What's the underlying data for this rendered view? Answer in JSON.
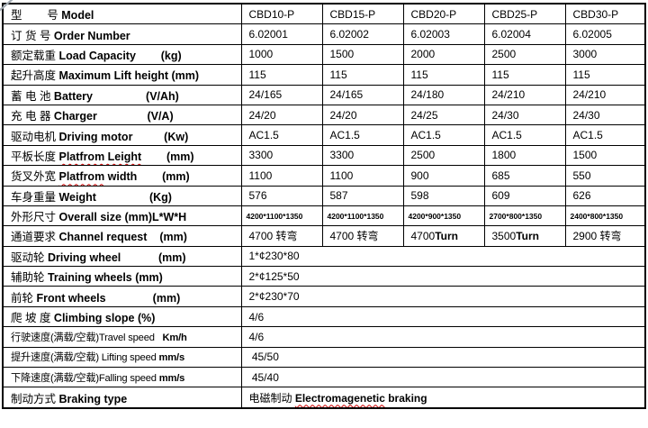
{
  "colors": {
    "border": "#000000",
    "spellcheck_underline": "#cc0000",
    "background": "#ffffff",
    "corner_artifact": "#a3abb3"
  },
  "table": {
    "columns": 6,
    "rows": [
      {
        "label": [
          {
            "t": "型        号 "
          },
          {
            "t": "Model",
            "b": true
          }
        ],
        "values": [
          "CBD10-P",
          "CBD15-P",
          "CBD20-P",
          "CBD25-P",
          "CBD30-P"
        ]
      },
      {
        "label": [
          {
            "t": "订 货 号 "
          },
          {
            "t": "Order Number",
            "b": true
          }
        ],
        "values": [
          "6.02001",
          "6.02002",
          "6.02003",
          "6.02004",
          "6.02005"
        ]
      },
      {
        "label": [
          {
            "t": "额定载重 "
          },
          {
            "t": "Load Capacity",
            "b": true
          },
          {
            "t": "        "
          },
          {
            "t": "(kg)",
            "b": true
          }
        ],
        "values": [
          "1000",
          "1500",
          "2000",
          "2500",
          "3000"
        ]
      },
      {
        "label": [
          {
            "t": "起升高度 "
          },
          {
            "t": "Maximum Lift height (mm)",
            "b": true
          }
        ],
        "values": [
          "115",
          "115",
          "115",
          "115",
          "115"
        ]
      },
      {
        "label": [
          {
            "t": "蓄 电 池 "
          },
          {
            "t": "Battery",
            "b": true
          },
          {
            "t": "                 "
          },
          {
            "t": "(V/Ah)",
            "b": true
          }
        ],
        "values": [
          "24/165",
          "24/165",
          "24/180",
          "24/210",
          "24/210"
        ]
      },
      {
        "label": [
          {
            "t": "充 电 器 "
          },
          {
            "t": "Charger",
            "b": true
          },
          {
            "t": "                "
          },
          {
            "t": "(V/A)",
            "b": true
          }
        ],
        "values": [
          "24/20",
          "24/20",
          "24/25",
          "24/30",
          "24/30"
        ]
      },
      {
        "label": [
          {
            "t": "驱动电机 "
          },
          {
            "t": "Driving motor",
            "b": true
          },
          {
            "t": "          "
          },
          {
            "t": "(Kw)",
            "b": true
          }
        ],
        "values": [
          "AC1.5",
          "AC1.5",
          "AC1.5",
          "AC1.5",
          "AC1.5"
        ]
      },
      {
        "label": [
          {
            "t": "平板长度 "
          },
          {
            "t": "Platfrom Leight",
            "b": true,
            "w": true
          },
          {
            "t": "        "
          },
          {
            "t": "(mm)",
            "b": true
          }
        ],
        "values": [
          "3300",
          "3300",
          "2500",
          "1800",
          "1500"
        ]
      },
      {
        "label": [
          {
            "t": "货叉外宽 "
          },
          {
            "t": "Platfrom",
            "b": true,
            "w": true
          },
          {
            "t": " width",
            "b": true
          },
          {
            "t": "        "
          },
          {
            "t": "(mm)",
            "b": true
          }
        ],
        "values": [
          "1100",
          "1100",
          "900",
          "685",
          "550"
        ]
      },
      {
        "label": [
          {
            "t": "车身重量 "
          },
          {
            "t": "Weight",
            "b": true
          },
          {
            "t": "                 "
          },
          {
            "t": "(Kg)",
            "b": true
          }
        ],
        "values": [
          "576",
          "587",
          "598",
          "609",
          "626"
        ]
      },
      {
        "label": [
          {
            "t": "外形尺寸 "
          },
          {
            "t": "Overall size (mm)L*W*H",
            "b": true
          }
        ],
        "small": true,
        "values": [
          "4200*1100*1350",
          "4200*1100*1350",
          "4200*900*1350",
          "2700*800*1350",
          "2400*800*1350"
        ]
      },
      {
        "label": [
          {
            "t": "通道要求 "
          },
          {
            "t": "Channel request",
            "b": true
          },
          {
            "t": "    "
          },
          {
            "t": "(mm)",
            "b": true
          }
        ],
        "values": [
          "4700 转弯",
          "4700 转弯",
          [
            {
              "t": "4700"
            },
            {
              "t": "Turn",
              "b": true
            }
          ],
          [
            {
              "t": "3500"
            },
            {
              "t": "Turn",
              "b": true
            }
          ],
          "2900 转弯"
        ]
      },
      {
        "label": [
          {
            "t": "驱动轮 "
          },
          {
            "t": "Driving wheel",
            "b": true
          },
          {
            "t": "            "
          },
          {
            "t": "(mm)",
            "b": true
          }
        ],
        "merged": true,
        "values": [
          "1*¢230*80"
        ]
      },
      {
        "label": [
          {
            "t": "辅助轮 "
          },
          {
            "t": "Training wheels (mm)",
            "b": true
          }
        ],
        "merged": true,
        "values": [
          "2*¢125*50"
        ]
      },
      {
        "label": [
          {
            "t": "前轮 "
          },
          {
            "t": "Front wheels",
            "b": true
          },
          {
            "t": "               "
          },
          {
            "t": "(mm)",
            "b": true
          }
        ],
        "merged": true,
        "values": [
          "2*¢230*70"
        ]
      },
      {
        "label": [
          {
            "t": "爬 坡 度 "
          },
          {
            "t": "Climbing slope (%)",
            "b": true
          }
        ],
        "merged": true,
        "values": [
          "4/6"
        ]
      },
      {
        "label": [
          {
            "t": "行驶速度(满载/空载)"
          },
          {
            "t": "Travel speed"
          },
          {
            "t": "   "
          },
          {
            "t": "Km/h",
            "b": true
          }
        ],
        "condensed": true,
        "merged": true,
        "values": [
          "4/6"
        ]
      },
      {
        "label": [
          {
            "t": "提升速度(满载/空载) "
          },
          {
            "t": "Lifting speed "
          },
          {
            "t": "mm/s",
            "b": true
          }
        ],
        "condensed": true,
        "merged": true,
        "values": [
          " 45/50"
        ]
      },
      {
        "label": [
          {
            "t": "下降速度(满载/空载)"
          },
          {
            "t": "Falling speed "
          },
          {
            "t": "mm/s",
            "b": true
          }
        ],
        "condensed": true,
        "merged": true,
        "values": [
          " 45/40"
        ]
      },
      {
        "label": [
          {
            "t": "制动方式 "
          },
          {
            "t": "Braking type",
            "b": true
          }
        ],
        "merged": true,
        "values": [
          [
            {
              "t": "电磁制动 "
            },
            {
              "t": "Electromagenetic",
              "b": true,
              "w": true
            },
            {
              "t": " braking",
              "b": true
            }
          ]
        ]
      }
    ]
  }
}
